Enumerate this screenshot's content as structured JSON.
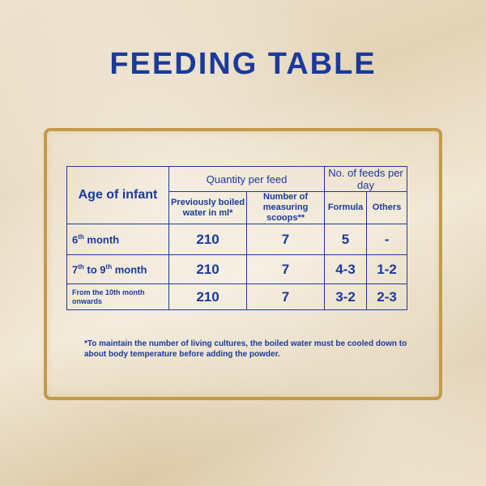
{
  "title": "FEEDING TABLE",
  "table": {
    "age_header": "Age of infant",
    "quantity_header": "Quantity per feed",
    "feeds_header": "No. of feeds per day",
    "sub_water": "Previously boiled water in ml*",
    "sub_scoops": "Number of measuring scoops**",
    "sub_formula": "Formula",
    "sub_others": "Others",
    "rows": [
      {
        "age_pre": "6",
        "age_sup": "th",
        "age_post": " month",
        "water": "210",
        "scoops": "7",
        "formula": "5",
        "others": "-"
      },
      {
        "age_pre": "7",
        "age_sup": "th",
        "age_mid": " to 9",
        "age_sup2": "th",
        "age_post": " month",
        "water": "210",
        "scoops": "7",
        "formula": "4-3",
        "others": "1-2"
      },
      {
        "age_text": "From the 10th month onwards",
        "water": "210",
        "scoops": "7",
        "formula": "3-2",
        "others": "2-3"
      }
    ]
  },
  "footnote": "*To maintain the number of living cultures, the boiled water must be cooled down to about body temperature before adding the powder.",
  "colors": {
    "text": "#1a3a9c",
    "frame": "#c49a4a"
  }
}
